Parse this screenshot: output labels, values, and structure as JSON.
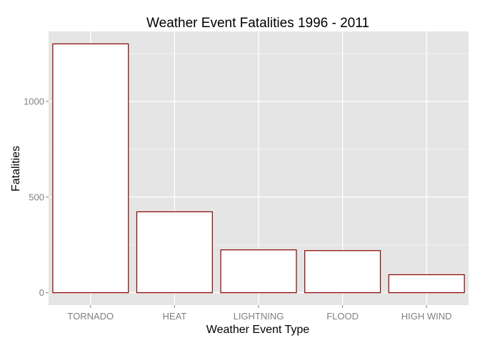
{
  "chart_data": {
    "type": "bar",
    "title": "Weather Event Fatalities 1996 - 2011",
    "xlabel": "Weather Event Type",
    "ylabel": "Fatalities",
    "categories": [
      "TORNADO",
      "HEAT",
      "LIGHTNING",
      "FLOOD",
      "HIGH WIND"
    ],
    "values": [
      1301,
      423,
      224,
      220,
      94
    ],
    "ylim": [
      -65,
      1366
    ],
    "yticks": [
      0,
      500,
      1000
    ],
    "grid": true,
    "legend": "none",
    "colors": {
      "panel_background": "#e5e5e5",
      "grid_major": "#ffffff",
      "grid_minor": "#f2f2f2",
      "bar_fill": "#ffffff",
      "bar_outline": "#8b0000",
      "tick_text": "#7f7f7f",
      "tick_mark": "#7f7f7f"
    }
  }
}
